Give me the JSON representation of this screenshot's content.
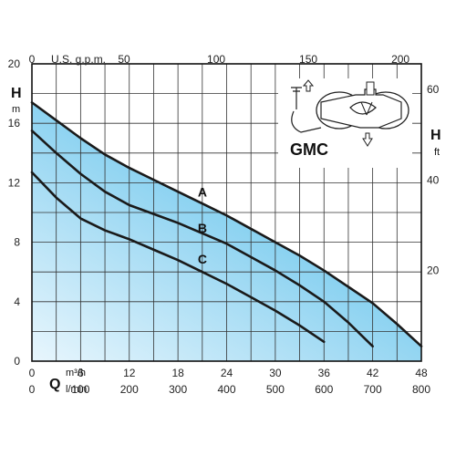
{
  "chart_data": {
    "type": "line",
    "model": "GMC",
    "x_primary": {
      "label": "Q",
      "unit_top": "m³/h",
      "unit_bottom": "l/min",
      "ticks_m3h": [
        0,
        6,
        12,
        18,
        24,
        30,
        36,
        42,
        48
      ],
      "ticks_lmin": [
        0,
        100,
        200,
        300,
        400,
        500,
        600,
        700,
        800
      ],
      "range_m3h": [
        0,
        48
      ]
    },
    "x_secondary": {
      "label": "U.S. g.p.m.",
      "ticks": [
        0,
        50,
        100,
        150,
        200
      ]
    },
    "y_left": {
      "label": "H",
      "unit": "m",
      "ticks": [
        0,
        4,
        8,
        12,
        16,
        20
      ],
      "range": [
        0,
        20
      ]
    },
    "y_right": {
      "label": "H",
      "unit": "ft",
      "ticks": [
        20,
        40,
        60
      ]
    },
    "grid": true,
    "series": [
      {
        "name": "A",
        "x": [
          0,
          3,
          6,
          9,
          12,
          15,
          18,
          21,
          24,
          27,
          30,
          33,
          36,
          39,
          42,
          45,
          48
        ],
        "y": [
          17.4,
          16.2,
          15.0,
          13.9,
          13.0,
          12.2,
          11.4,
          10.6,
          9.8,
          8.9,
          8.0,
          7.1,
          6.1,
          5.0,
          3.9,
          2.5,
          1.0
        ]
      },
      {
        "name": "B",
        "x": [
          0,
          3,
          6,
          9,
          12,
          15,
          18,
          21,
          24,
          27,
          30,
          33,
          36,
          39,
          42
        ],
        "y": [
          15.5,
          14.0,
          12.6,
          11.4,
          10.5,
          9.9,
          9.3,
          8.6,
          7.9,
          7.0,
          6.1,
          5.1,
          4.0,
          2.6,
          1.0
        ]
      },
      {
        "name": "C",
        "x": [
          0,
          3,
          6,
          9,
          12,
          15,
          18,
          21,
          24,
          27,
          30,
          33,
          36
        ],
        "y": [
          12.7,
          11.0,
          9.6,
          8.8,
          8.2,
          7.5,
          6.8,
          6.0,
          5.2,
          4.3,
          3.4,
          2.4,
          1.3
        ]
      }
    ]
  }
}
